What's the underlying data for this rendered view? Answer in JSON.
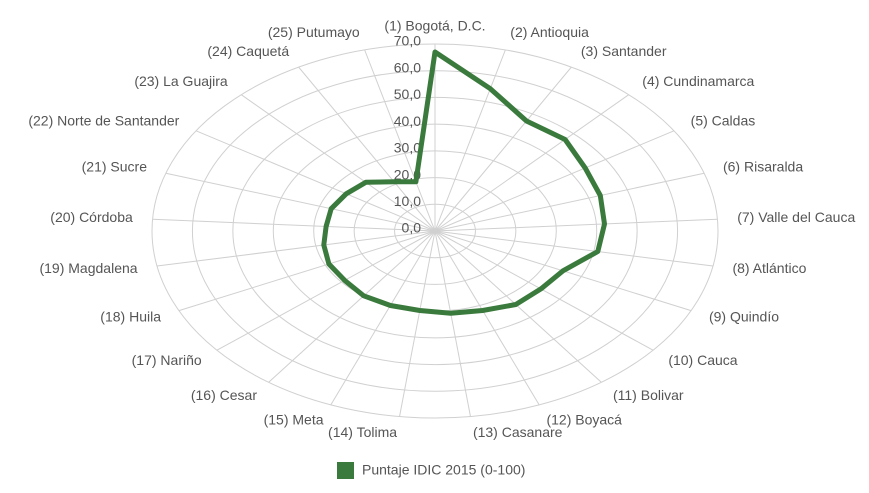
{
  "chart_data": {
    "type": "radar",
    "categories": [
      "(1) Bogotá, D.C.",
      "(2) Antioquia",
      "(3) Santander",
      "(4) Cundinamarca",
      "(5) Caldas",
      "(6) Risaralda",
      "(7) Valle del Cauca",
      "(8) Atlántico",
      "(9) Quindío",
      "(10) Cauca",
      "(11) Bolivar",
      "(12) Boyacá",
      "(13) Casanare",
      "(14) Tolima",
      "(15) Meta",
      "(16) Cesar",
      "(17) Nariño",
      "(18) Huila",
      "(19) Magdalena",
      "(20) Córdoba",
      "(21) Sucre",
      "(22) Norte de Santander",
      "(23) La Guajira",
      "(24) Caquetá",
      "(25) Putumayo"
    ],
    "series": [
      {
        "name": "Puntaje IDIC 2015 (0-100)",
        "color": "#3a7a3c",
        "values": [
          67,
          55,
          47,
          47,
          44,
          43,
          42,
          41,
          35,
          34,
          34,
          32,
          31,
          30,
          30,
          30,
          29,
          29,
          28,
          27,
          27,
          26,
          25,
          21,
          19
        ]
      }
    ],
    "ylim": [
      0,
      70
    ],
    "yticks": [
      {
        "value": 0,
        "label": "0,0"
      },
      {
        "value": 10,
        "label": "10,0"
      },
      {
        "value": 20,
        "label": "20,0"
      },
      {
        "value": 30,
        "label": "30,0"
      },
      {
        "value": 40,
        "label": "40,0"
      },
      {
        "value": 50,
        "label": "50,0"
      },
      {
        "value": 60,
        "label": "60,0"
      },
      {
        "value": 70,
        "label": "70,0"
      }
    ],
    "grid": true,
    "legend": "bottom"
  }
}
